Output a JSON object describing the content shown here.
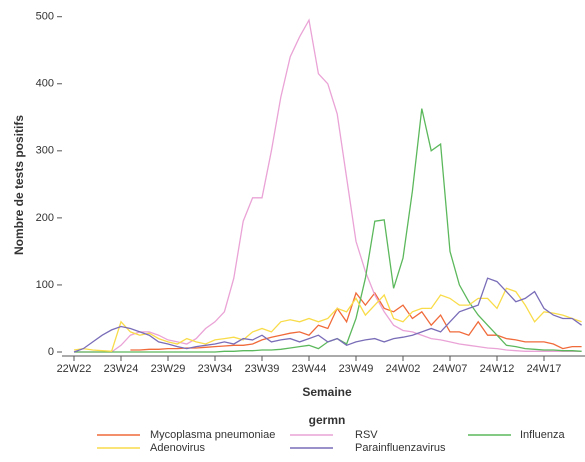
{
  "chart_data": {
    "type": "line",
    "x_label": "Semaine",
    "y_label": "Nombre de tests positifs",
    "legend_title": "germn",
    "categories": [
      "22W22",
      null,
      null,
      null,
      null,
      "23W24",
      null,
      null,
      null,
      null,
      "23W29",
      null,
      null,
      null,
      null,
      "23W34",
      null,
      null,
      null,
      null,
      "23W39",
      null,
      null,
      null,
      null,
      "23W44",
      null,
      null,
      null,
      null,
      "23W49",
      null,
      null,
      null,
      null,
      "24W02",
      null,
      null,
      null,
      null,
      "24W07",
      null,
      null,
      null,
      null,
      "24W12",
      null,
      null,
      null,
      null,
      "24W17",
      null,
      null,
      null,
      null
    ],
    "ylim": [
      0,
      510
    ],
    "yticks": [
      0,
      100,
      200,
      300,
      400,
      500
    ],
    "grid": false,
    "legend": "bottom",
    "series": [
      {
        "name": "Mycoplasma pneumoniae",
        "color": "#f06a3a",
        "values": [
          null,
          null,
          null,
          null,
          null,
          null,
          3,
          3,
          4,
          4,
          5,
          5,
          6,
          6,
          7,
          8,
          9,
          10,
          10,
          12,
          18,
          22,
          25,
          28,
          30,
          25,
          40,
          35,
          65,
          45,
          88,
          70,
          88,
          65,
          60,
          70,
          50,
          60,
          40,
          55,
          30,
          30,
          25,
          45,
          25,
          25,
          20,
          18,
          15,
          15,
          15,
          12,
          5,
          8,
          8
        ]
      },
      {
        "name": "RSV",
        "color": "#eaa3d6",
        "values": [
          0,
          0,
          0,
          0,
          0,
          10,
          25,
          30,
          30,
          25,
          18,
          15,
          12,
          20,
          35,
          45,
          60,
          110,
          195,
          230,
          230,
          300,
          380,
          440,
          470,
          495,
          415,
          400,
          355,
          260,
          165,
          120,
          85,
          60,
          40,
          32,
          30,
          25,
          20,
          18,
          15,
          12,
          10,
          8,
          6,
          5,
          3,
          2,
          1,
          1,
          1,
          1,
          1,
          1,
          1
        ]
      },
      {
        "name": "Influenza",
        "color": "#5cb85c",
        "values": [
          0,
          0,
          0,
          0,
          0,
          0,
          0,
          0,
          0,
          0,
          0,
          0,
          0,
          0,
          0,
          0,
          1,
          1,
          2,
          2,
          3,
          3,
          4,
          6,
          8,
          10,
          5,
          15,
          20,
          12,
          50,
          110,
          195,
          197,
          95,
          140,
          240,
          363,
          300,
          310,
          150,
          100,
          75,
          55,
          40,
          25,
          10,
          8,
          5,
          4,
          3,
          3,
          2,
          2,
          1
        ]
      },
      {
        "name": "Adenovirus",
        "color": "#f9dc4a",
        "values": [
          3,
          5,
          3,
          2,
          1,
          45,
          30,
          25,
          28,
          20,
          15,
          12,
          20,
          15,
          12,
          18,
          20,
          22,
          18,
          30,
          35,
          30,
          45,
          48,
          45,
          50,
          45,
          50,
          65,
          60,
          80,
          55,
          70,
          85,
          50,
          45,
          60,
          65,
          65,
          85,
          80,
          70,
          70,
          80,
          80,
          65,
          95,
          90,
          70,
          45,
          60,
          58,
          55,
          50,
          45
        ]
      },
      {
        "name": "Parainfluenzavirus",
        "color": "#7a6db8",
        "values": [
          0,
          5,
          15,
          25,
          33,
          38,
          35,
          30,
          25,
          15,
          12,
          8,
          5,
          8,
          10,
          12,
          15,
          12,
          20,
          18,
          25,
          15,
          18,
          20,
          15,
          20,
          25,
          15,
          20,
          10,
          15,
          18,
          20,
          15,
          20,
          22,
          25,
          30,
          35,
          30,
          45,
          60,
          65,
          70,
          110,
          105,
          90,
          75,
          80,
          90,
          65,
          55,
          50,
          50,
          40
        ]
      }
    ]
  }
}
